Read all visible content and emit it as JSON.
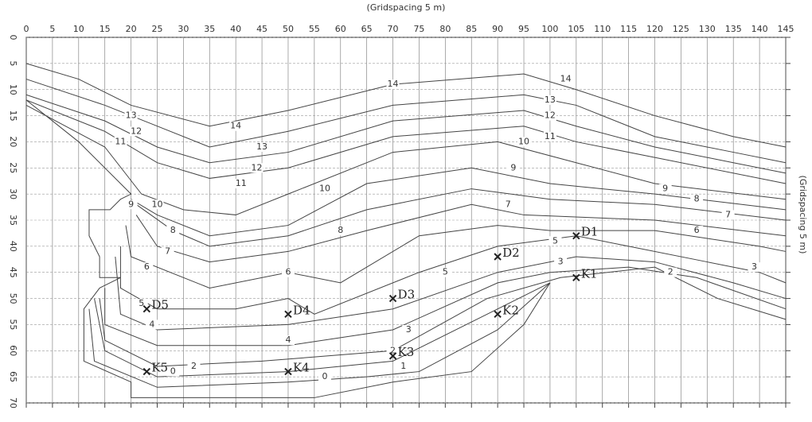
{
  "header": {
    "top_label": "(Gridspacing 5 m)",
    "right_label": "(Gridspacing 5 m)"
  },
  "x_axis": {
    "ticks": [
      0,
      5,
      10,
      15,
      20,
      25,
      30,
      35,
      40,
      45,
      50,
      55,
      60,
      65,
      70,
      75,
      80,
      85,
      90,
      95,
      100,
      105,
      110,
      115,
      120,
      125,
      130,
      135,
      140,
      145
    ]
  },
  "y_axis": {
    "ticks": [
      0,
      5,
      10,
      15,
      20,
      25,
      30,
      35,
      40,
      45,
      50,
      55,
      60,
      65,
      70
    ]
  },
  "contour_labels": [
    "14",
    "14",
    "14",
    "13",
    "13",
    "13",
    "12",
    "12",
    "12",
    "11",
    "11",
    "11",
    "10",
    "10",
    "10",
    "9",
    "9",
    "9",
    "8",
    "8",
    "8",
    "7",
    "7",
    "7",
    "6",
    "6",
    "6",
    "5",
    "5",
    "5",
    "4",
    "4",
    "3",
    "3",
    "3",
    "2",
    "2",
    "2",
    "1",
    "0",
    "0"
  ],
  "points": [
    {
      "label": "D1"
    },
    {
      "label": "D2"
    },
    {
      "label": "D3"
    },
    {
      "label": "D4"
    },
    {
      "label": "D5"
    },
    {
      "label": "K1"
    },
    {
      "label": "K2"
    },
    {
      "label": "K3"
    },
    {
      "label": "K4"
    },
    {
      "label": "K5"
    }
  ]
}
